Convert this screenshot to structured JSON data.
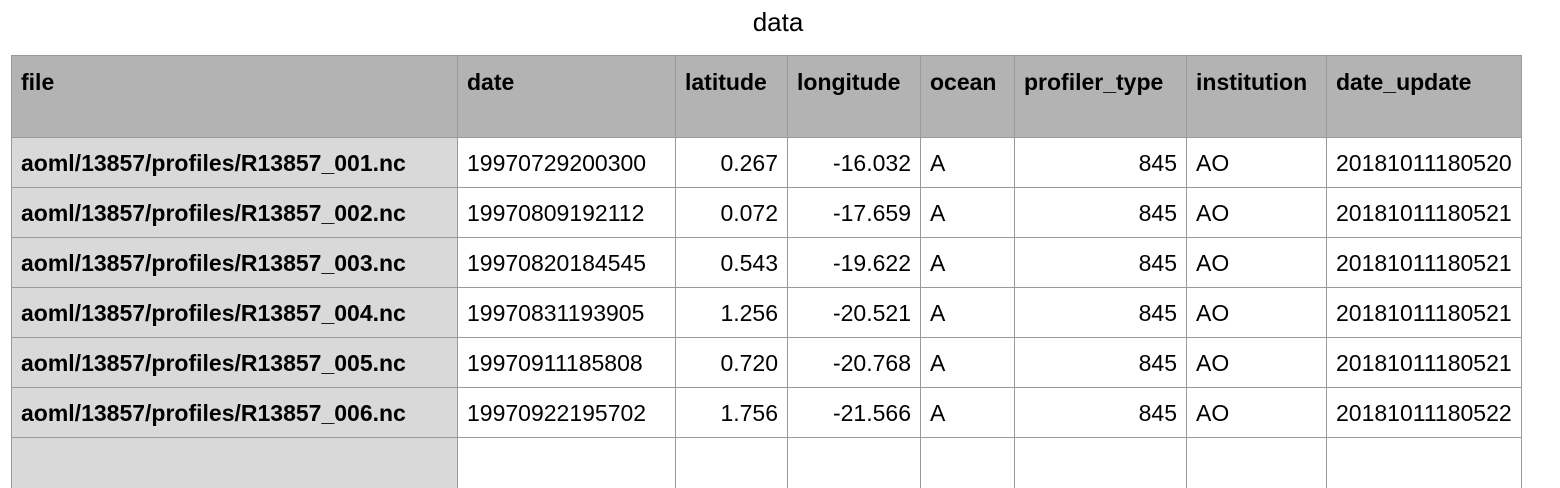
{
  "title": "data",
  "table": {
    "columns": [
      "file",
      "date",
      "latitude",
      "longitude",
      "ocean",
      "profiler_type",
      "institution",
      "date_update"
    ],
    "rows": [
      {
        "file": "aoml/13857/profiles/R13857_001.nc",
        "date": "19970729200300",
        "latitude": "0.267",
        "longitude": "-16.032",
        "ocean": "A",
        "profiler_type": "845",
        "institution": "AO",
        "date_update": "20181011180520"
      },
      {
        "file": "aoml/13857/profiles/R13857_002.nc",
        "date": "19970809192112",
        "latitude": "0.072",
        "longitude": "-17.659",
        "ocean": "A",
        "profiler_type": "845",
        "institution": "AO",
        "date_update": "20181011180521"
      },
      {
        "file": "aoml/13857/profiles/R13857_003.nc",
        "date": "19970820184545",
        "latitude": "0.543",
        "longitude": "-19.622",
        "ocean": "A",
        "profiler_type": "845",
        "institution": "AO",
        "date_update": "20181011180521"
      },
      {
        "file": "aoml/13857/profiles/R13857_004.nc",
        "date": "19970831193905",
        "latitude": "1.256",
        "longitude": "-20.521",
        "ocean": "A",
        "profiler_type": "845",
        "institution": "AO",
        "date_update": "20181011180521"
      },
      {
        "file": "aoml/13857/profiles/R13857_005.nc",
        "date": "19970911185808",
        "latitude": "0.720",
        "longitude": "-20.768",
        "ocean": "A",
        "profiler_type": "845",
        "institution": "AO",
        "date_update": "20181011180521"
      },
      {
        "file": "aoml/13857/profiles/R13857_006.nc",
        "date": "19970922195702",
        "latitude": "1.756",
        "longitude": "-21.566",
        "ocean": "A",
        "profiler_type": "845",
        "institution": "AO",
        "date_update": "20181011180522"
      }
    ]
  }
}
